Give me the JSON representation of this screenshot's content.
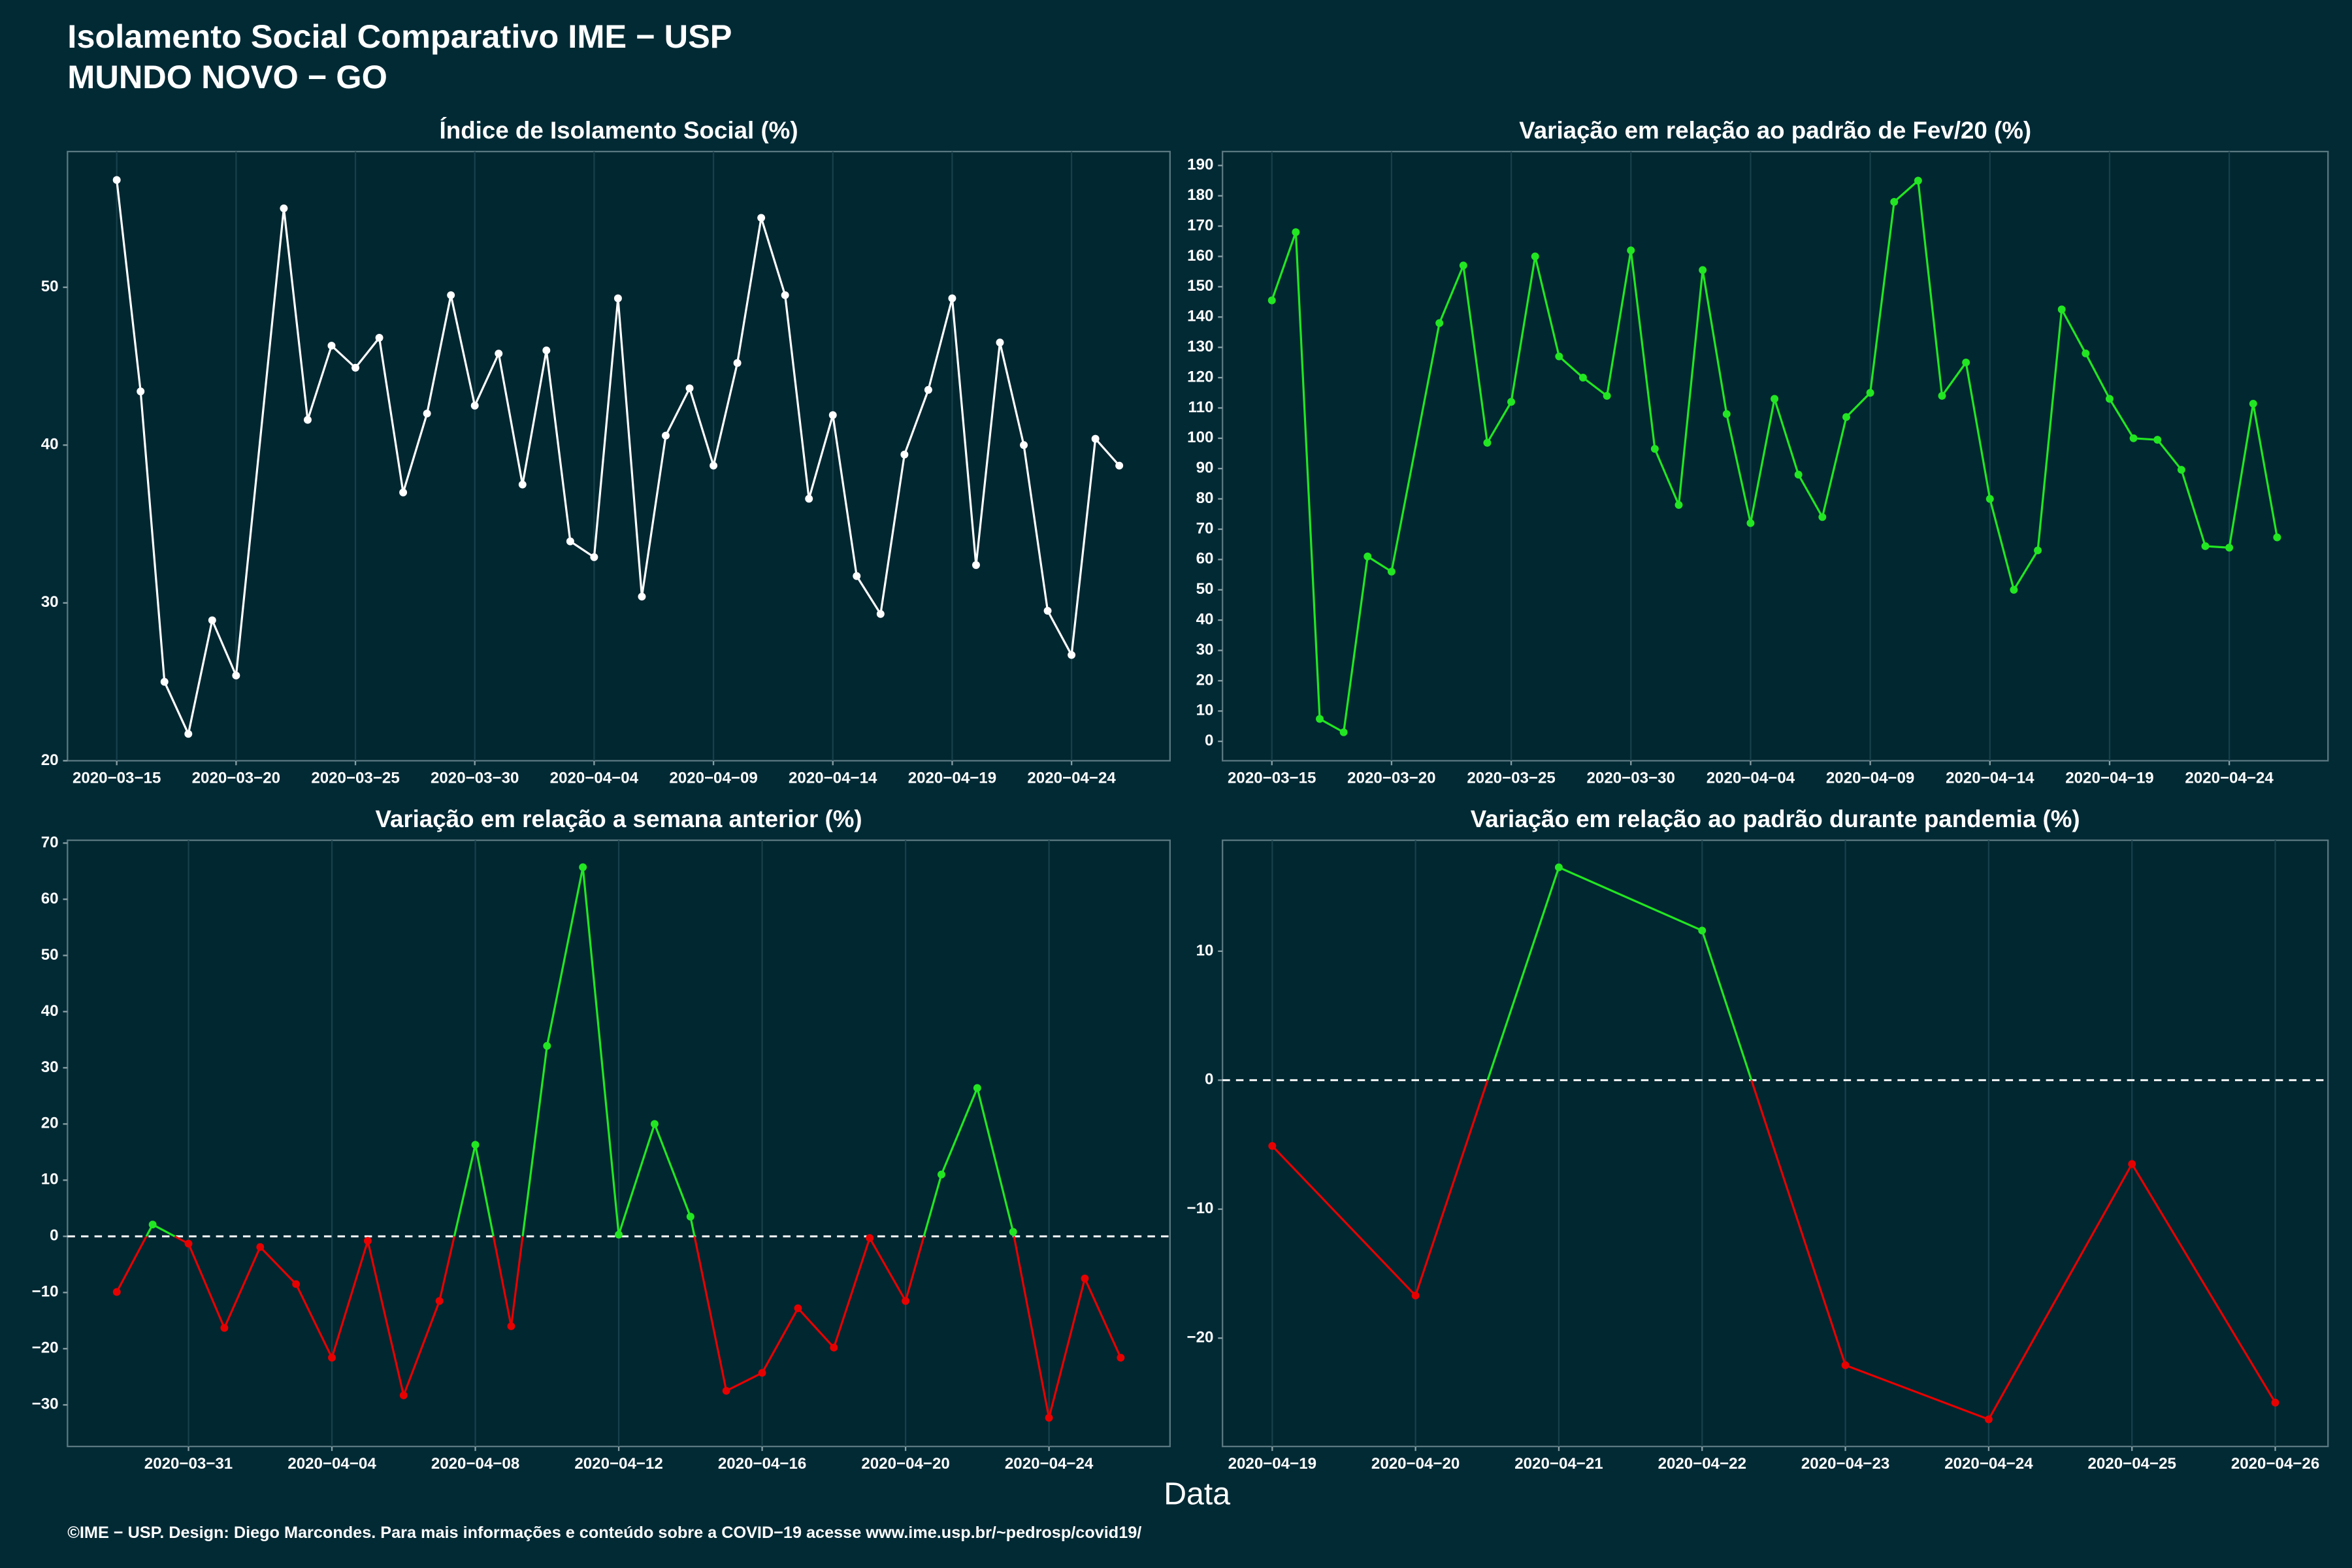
{
  "header": {
    "title": "Isolamento Social Comparativo IME − USP",
    "subtitle": "MUNDO NOVO − GO"
  },
  "x_label": "Data",
  "footer": "©IME − USP. Design: Diego Marcondes. Para mais informações e conteúdo sobre a COVID−19 acesse www.ime.usp.br/~pedrosp/covid19/",
  "chart_data": [
    {
      "type": "line",
      "title": "Índice de Isolamento Social (%)",
      "color": "#ffffff",
      "grid": "x",
      "x": [
        "2020-03-15",
        "2020-03-16",
        "2020-03-17",
        "2020-03-18",
        "2020-03-19",
        "2020-03-20",
        "2020-03-22",
        "2020-03-23",
        "2020-03-24",
        "2020-03-25",
        "2020-03-26",
        "2020-03-27",
        "2020-03-28",
        "2020-03-29",
        "2020-03-30",
        "2020-03-31",
        "2020-04-01",
        "2020-04-02",
        "2020-04-03",
        "2020-04-04",
        "2020-04-05",
        "2020-04-06",
        "2020-04-07",
        "2020-04-08",
        "2020-04-09",
        "2020-04-10",
        "2020-04-11",
        "2020-04-12",
        "2020-04-13",
        "2020-04-14",
        "2020-04-15",
        "2020-04-16",
        "2020-04-17",
        "2020-04-18",
        "2020-04-19",
        "2020-04-20",
        "2020-04-21",
        "2020-04-22",
        "2020-04-23",
        "2020-04-24",
        "2020-04-25",
        "2020-04-26"
      ],
      "values": [
        56.8,
        43.4,
        25.0,
        21.7,
        28.9,
        25.4,
        55.0,
        41.6,
        46.3,
        44.9,
        46.8,
        37.0,
        42.0,
        49.5,
        42.5,
        45.8,
        37.5,
        46.0,
        33.9,
        32.9,
        49.3,
        30.4,
        40.6,
        43.6,
        38.7,
        45.2,
        54.4,
        49.5,
        36.6,
        41.9,
        31.7,
        29.3,
        39.4,
        43.5,
        49.3,
        32.4,
        46.5,
        40.0,
        29.5,
        26.7,
        40.4,
        38.7
      ],
      "xlim": [
        "2020-03-12T22:30:00Z",
        "2020-04-28T03:00:00Z"
      ],
      "xticks": [
        {
          "value": "2020-03-15",
          "label": "2020−03−15"
        },
        {
          "value": "2020-03-20",
          "label": "2020−03−20"
        },
        {
          "value": "2020-03-25",
          "label": "2020−03−25"
        },
        {
          "value": "2020-03-30",
          "label": "2020−03−30"
        },
        {
          "value": "2020-04-04",
          "label": "2020−04−04"
        },
        {
          "value": "2020-04-09",
          "label": "2020−04−09"
        },
        {
          "value": "2020-04-14",
          "label": "2020−04−14"
        },
        {
          "value": "2020-04-19",
          "label": "2020−04−19"
        },
        {
          "value": "2020-04-24",
          "label": "2020−04−24"
        }
      ],
      "ylim": [
        20,
        58.6
      ],
      "yticks": [
        20,
        30,
        40,
        50
      ]
    },
    {
      "type": "line",
      "title": "Variação em relação ao padrão de Fev/20 (%)",
      "color": "#22e622",
      "grid": "x",
      "x": [
        "2020-03-15",
        "2020-03-16",
        "2020-03-17",
        "2020-03-18",
        "2020-03-19",
        "2020-03-20",
        "2020-03-22",
        "2020-03-23",
        "2020-03-24",
        "2020-03-25",
        "2020-03-26",
        "2020-03-27",
        "2020-03-28",
        "2020-03-29",
        "2020-03-30",
        "2020-03-31",
        "2020-04-01",
        "2020-04-02",
        "2020-04-03",
        "2020-04-04",
        "2020-04-05",
        "2020-04-06",
        "2020-04-07",
        "2020-04-08",
        "2020-04-09",
        "2020-04-10",
        "2020-04-11",
        "2020-04-12",
        "2020-04-13",
        "2020-04-14",
        "2020-04-15",
        "2020-04-16",
        "2020-04-17",
        "2020-04-18",
        "2020-04-19",
        "2020-04-20",
        "2020-04-21",
        "2020-04-22",
        "2020-04-23",
        "2020-04-24",
        "2020-04-25",
        "2020-04-26"
      ],
      "values": [
        145.5,
        168,
        7.4,
        3,
        61,
        56,
        138,
        157,
        98.5,
        112,
        160,
        127,
        120,
        114,
        162,
        96.5,
        78,
        155.5,
        108,
        72,
        113,
        88,
        74,
        107,
        115,
        178,
        185,
        114,
        125,
        80,
        50,
        63,
        142.5,
        128,
        113,
        100,
        99.5,
        89.6,
        64.4,
        63.9,
        111.4,
        67.3
      ],
      "xlim": [
        "2020-03-12T22:30:00Z",
        "2020-04-28T03:00:00Z"
      ],
      "xticks": [
        {
          "value": "2020-03-15",
          "label": "2020−03−15"
        },
        {
          "value": "2020-03-20",
          "label": "2020−03−20"
        },
        {
          "value": "2020-03-25",
          "label": "2020−03−25"
        },
        {
          "value": "2020-03-30",
          "label": "2020−03−30"
        },
        {
          "value": "2020-04-04",
          "label": "2020−04−04"
        },
        {
          "value": "2020-04-09",
          "label": "2020−04−09"
        },
        {
          "value": "2020-04-14",
          "label": "2020−04−14"
        },
        {
          "value": "2020-04-19",
          "label": "2020−04−19"
        },
        {
          "value": "2020-04-24",
          "label": "2020−04−24"
        }
      ],
      "ylim": [
        -6.4,
        194.6
      ],
      "yticks": [
        0,
        10,
        20,
        30,
        40,
        50,
        60,
        70,
        80,
        90,
        100,
        110,
        120,
        130,
        140,
        150,
        160,
        170,
        180,
        190
      ]
    },
    {
      "type": "line",
      "title": "Variação em relação a semana anterior (%)",
      "color_by_sign": true,
      "positive_color": "#22e622",
      "negative_color": "#e60000",
      "hline": 0,
      "grid": "x",
      "x": [
        "2020-03-29",
        "2020-03-30",
        "2020-03-31",
        "2020-04-01",
        "2020-04-02",
        "2020-04-03",
        "2020-04-04",
        "2020-04-05",
        "2020-04-06",
        "2020-04-07",
        "2020-04-08",
        "2020-04-09",
        "2020-04-10",
        "2020-04-11",
        "2020-04-12",
        "2020-04-13",
        "2020-04-14",
        "2020-04-15",
        "2020-04-16",
        "2020-04-17",
        "2020-04-18",
        "2020-04-19",
        "2020-04-20",
        "2020-04-21",
        "2020-04-22",
        "2020-04-23",
        "2020-04-24",
        "2020-04-25",
        "2020-04-26"
      ],
      "values": [
        -9.9,
        2.1,
        -1.3,
        -16.3,
        -1.9,
        -8.5,
        -21.6,
        -0.8,
        -28.3,
        -11.5,
        16.3,
        -16.0,
        33.9,
        65.7,
        0.3,
        20.0,
        3.5,
        -27.5,
        -24.3,
        -12.8,
        -19.8,
        -0.3,
        -11.5,
        11.0,
        26.4,
        0.8,
        -32.3,
        -7.5,
        -21.6
      ],
      "xlim": [
        "2020-03-27T15:00:00Z",
        "2020-04-27T09:00:00Z"
      ],
      "xticks": [
        {
          "value": "2020-03-31",
          "label": "2020−03−31"
        },
        {
          "value": "2020-04-04",
          "label": "2020−04−04"
        },
        {
          "value": "2020-04-08",
          "label": "2020−04−08"
        },
        {
          "value": "2020-04-12",
          "label": "2020−04−12"
        },
        {
          "value": "2020-04-16",
          "label": "2020−04−16"
        },
        {
          "value": "2020-04-20",
          "label": "2020−04−20"
        },
        {
          "value": "2020-04-24",
          "label": "2020−04−24"
        }
      ],
      "ylim": [
        -37.4,
        70.5
      ],
      "yticks": [
        {
          "value": -30,
          "label": "−30"
        },
        {
          "value": -20,
          "label": "−20"
        },
        {
          "value": -10,
          "label": "−10"
        },
        0,
        10,
        20,
        30,
        40,
        50,
        60,
        70
      ]
    },
    {
      "type": "line",
      "title": "Variação em relação ao padrão durante pandemia (%)",
      "color_by_sign": true,
      "positive_color": "#22e622",
      "negative_color": "#e60000",
      "hline": 0,
      "grid": "x",
      "x": [
        "2020-04-19",
        "2020-04-20",
        "2020-04-21",
        "2020-04-22",
        "2020-04-23",
        "2020-04-24",
        "2020-04-25",
        "2020-04-26"
      ],
      "values": [
        -5.1,
        -16.7,
        16.5,
        11.6,
        -22.1,
        -26.3,
        -6.5,
        -25.0
      ],
      "xlim": [
        "2020-04-18T15:40:00Z",
        "2020-04-26T08:50:00Z"
      ],
      "xticks": [
        {
          "value": "2020-04-19",
          "label": "2020−04−19"
        },
        {
          "value": "2020-04-20",
          "label": "2020−04−20"
        },
        {
          "value": "2020-04-21",
          "label": "2020−04−21"
        },
        {
          "value": "2020-04-22",
          "label": "2020−04−22"
        },
        {
          "value": "2020-04-23",
          "label": "2020−04−23"
        },
        {
          "value": "2020-04-24",
          "label": "2020−04−24"
        },
        {
          "value": "2020-04-25",
          "label": "2020−04−25"
        },
        {
          "value": "2020-04-26",
          "label": "2020−04−26"
        }
      ],
      "ylim": [
        -28.4,
        18.6
      ],
      "yticks": [
        {
          "value": -20,
          "label": "−20"
        },
        {
          "value": -10,
          "label": "−10"
        },
        0,
        10
      ]
    }
  ]
}
